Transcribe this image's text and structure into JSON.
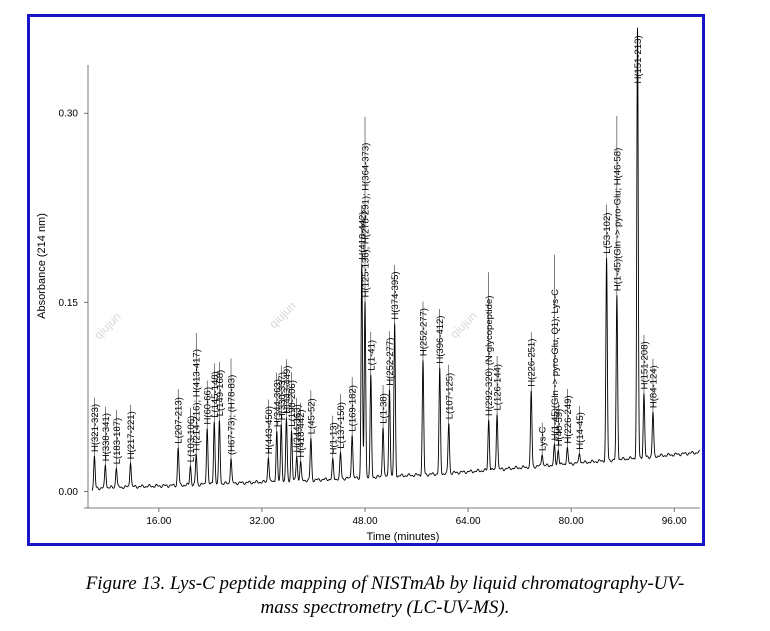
{
  "figure": {
    "caption_line1": "Figure 13. Lys-C peptide mapping of NISTmAb by liquid chromatography-UV-",
    "caption_line2": "mass spectrometry (LC-UV-MS).",
    "watermarks": [
      "qiujun",
      "qiujun",
      "qiujun"
    ]
  },
  "colors": {
    "frame": "#1a14c8",
    "trace": "#000000",
    "axis": "#555555"
  },
  "chart_data": {
    "type": "line",
    "title": "",
    "xlabel": "Time (minutes)",
    "ylabel": "Absorbance (214 nm)",
    "xlim": [
      5,
      100
    ],
    "ylim": [
      -0.01,
      0.37
    ],
    "x_ticks": [
      16,
      32,
      48,
      64,
      80,
      96
    ],
    "x_tick_labels": [
      "16.00",
      "32.00",
      "48.00",
      "64.00",
      "80.00",
      "96.00"
    ],
    "y_ticks": [
      0.0,
      0.15,
      0.3
    ],
    "y_tick_labels": [
      "0.00",
      "0.15",
      "0.30"
    ],
    "grid": false,
    "baseline": [
      [
        5,
        0.002
      ],
      [
        8,
        0.003
      ],
      [
        20,
        0.005
      ],
      [
        40,
        0.009
      ],
      [
        60,
        0.014
      ],
      [
        80,
        0.022
      ],
      [
        100,
        0.031
      ]
    ],
    "peaks": [
      {
        "rt": 6.0,
        "height": 0.025,
        "label": "H(321-323)"
      },
      {
        "rt": 7.7,
        "height": 0.018,
        "label": "H(338-341)"
      },
      {
        "rt": 9.4,
        "height": 0.016,
        "label": "L(183-187)"
      },
      {
        "rt": 11.6,
        "height": 0.02,
        "label": "H(217-221)"
      },
      {
        "rt": 19.0,
        "height": 0.03,
        "label": "L(207-213)"
      },
      {
        "rt": 20.9,
        "height": 0.015,
        "label": "L(103-106)"
      },
      {
        "rt": 21.8,
        "height": 0.024,
        "label": "H(214-216); H(413-417)"
      },
      {
        "rt": 23.5,
        "height": 0.045,
        "label": "H(60-66)"
      },
      {
        "rt": 24.6,
        "height": 0.05,
        "label": "L(145-148)"
      },
      {
        "rt": 25.4,
        "height": 0.05,
        "label": "L(149-168)"
      },
      {
        "rt": 27.2,
        "height": 0.02,
        "label": "(H67-73); (H78-83)"
      },
      {
        "rt": 33.0,
        "height": 0.02,
        "label": "H(443-450)"
      },
      {
        "rt": 34.3,
        "height": 0.04,
        "label": "H(344-363)"
      },
      {
        "rt": 35.0,
        "height": 0.045,
        "label": "H(330-337)"
      },
      {
        "rt": 35.8,
        "height": 0.05,
        "label": "H(443-449)"
      },
      {
        "rt": 36.6,
        "height": 0.04,
        "label": "L(190-206)"
      },
      {
        "rt": 37.4,
        "height": 0.02,
        "label": "H(344-363)"
      },
      {
        "rt": 38.0,
        "height": 0.015,
        "label": "H(418-442)"
      },
      {
        "rt": 39.6,
        "height": 0.033,
        "label": "L(45-52)"
      },
      {
        "rt": 43.0,
        "height": 0.015,
        "label": "H(1-13)"
      },
      {
        "rt": 44.2,
        "height": 0.02,
        "label": "L(137-150)"
      },
      {
        "rt": 46.0,
        "height": 0.035,
        "label": "L(169-182)"
      },
      {
        "rt": 47.5,
        "height": 0.17,
        "label": "H(418-442)"
      },
      {
        "rt": 48.0,
        "height": 0.14,
        "label": "H(125-136); H(278-291); H(364-373)"
      },
      {
        "rt": 48.9,
        "height": 0.08,
        "label": "L(1-41)"
      },
      {
        "rt": 50.8,
        "height": 0.04,
        "label": "L(1-38)"
      },
      {
        "rt": 51.8,
        "height": 0.07,
        "label": "H(252-277)"
      },
      {
        "rt": 52.6,
        "height": 0.12,
        "label": "H(374-395)"
      },
      {
        "rt": 57.0,
        "height": 0.09,
        "label": "H(252-277)"
      },
      {
        "rt": 59.6,
        "height": 0.083,
        "label": "H(396-412)"
      },
      {
        "rt": 61.0,
        "height": 0.04,
        "label": "L(107-125)"
      },
      {
        "rt": 67.2,
        "height": 0.04,
        "label": "H(292-320) (N-glycopeptide)"
      },
      {
        "rt": 68.5,
        "height": 0.045,
        "label": "L(126-144)"
      },
      {
        "rt": 73.8,
        "height": 0.06,
        "label": "H(226-251)"
      },
      {
        "rt": 75.5,
        "height": 0.01,
        "label": "Lys-C"
      },
      {
        "rt": 77.4,
        "height": 0.015,
        "label": "H(1-45)(Gln -> pyro-Glu, Q1); Lys-C"
      },
      {
        "rt": 78.0,
        "height": 0.012,
        "label": "H(46-59)"
      },
      {
        "rt": 79.4,
        "height": 0.013,
        "label": "H(226-249)"
      },
      {
        "rt": 81.3,
        "height": 0.008,
        "label": "H(14-45)"
      },
      {
        "rt": 85.5,
        "height": 0.16,
        "label": "L(53-102)"
      },
      {
        "rt": 87.1,
        "height": 0.13,
        "label": "H(1-45)(Gln -> pyro-Glu; H(46-58)"
      },
      {
        "rt": 90.3,
        "height": 0.34,
        "label": "H(151-213)"
      },
      {
        "rt": 91.3,
        "height": 0.05,
        "label": "H(151-208)"
      },
      {
        "rt": 92.7,
        "height": 0.035,
        "label": "H(84-124)"
      }
    ]
  }
}
